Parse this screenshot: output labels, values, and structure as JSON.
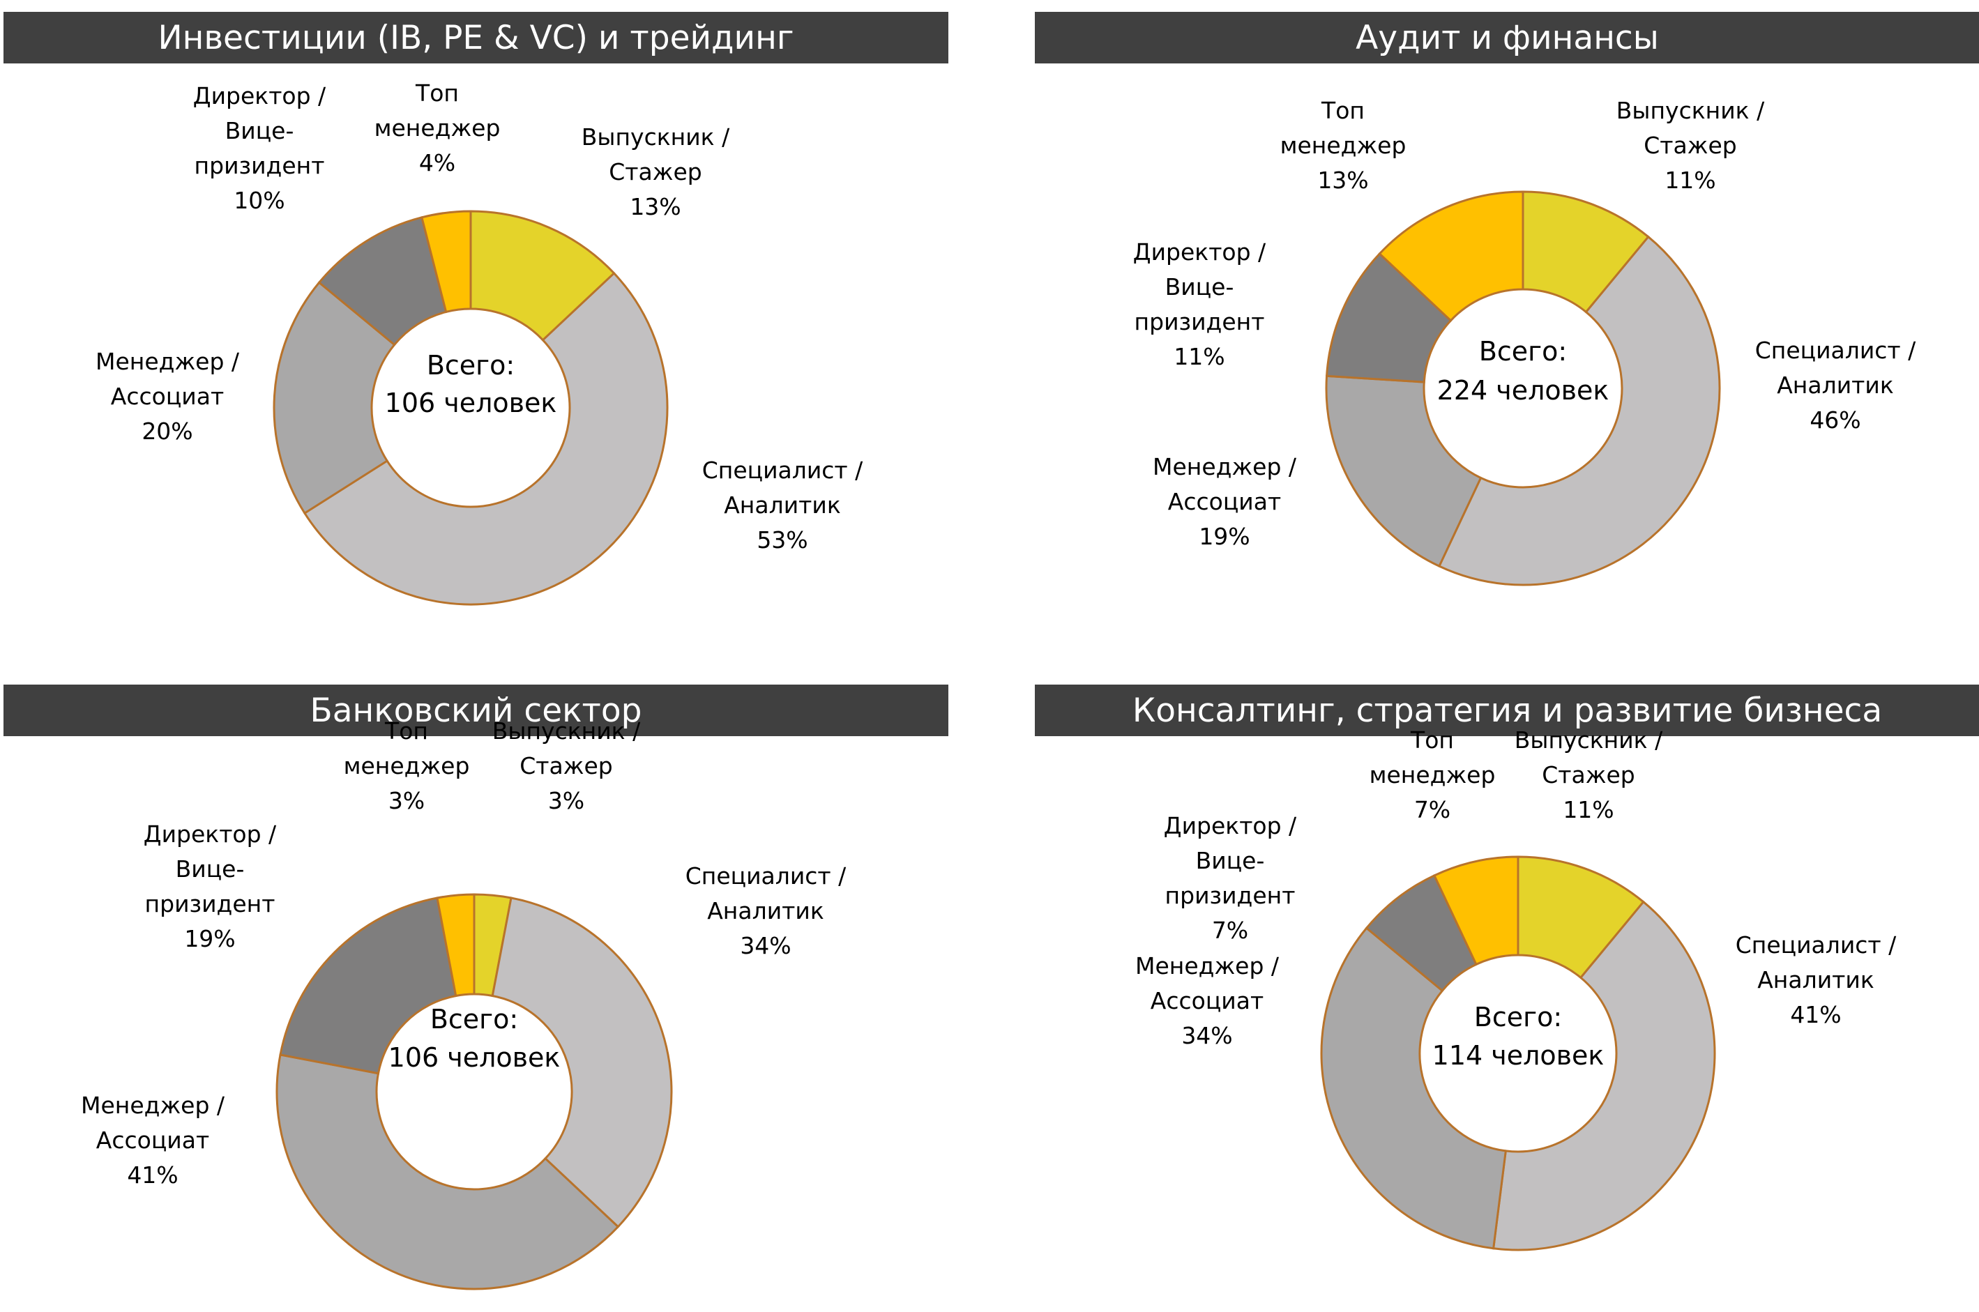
{
  "colors": {
    "title_bar": "#404040",
    "slice_stroke": "#B8732B",
    "Выпускник / Стажер": "#E4D32A",
    "Специалист / Аналитик": "#C2C0C1",
    "Менеджер / Ассоциат": "#A9A8A8",
    "Директор / Вице-призидент": "#7F7E7E",
    "Топ менеджер": "#FFC000"
  },
  "chart_data": [
    {
      "type": "pie",
      "title": "Инвестиции (IB, PE & VC) и трейдинг",
      "total_label": [
        "Всего:",
        "106 человек"
      ],
      "slices": [
        {
          "name": "Выпускник / Стажер",
          "value": 13,
          "label_lines": [
            "Выпускник /",
            "Стажер",
            "13%"
          ]
        },
        {
          "name": "Специалист / Аналитик",
          "value": 53,
          "label_lines": [
            "Специалист /",
            "Аналитик",
            "53%"
          ]
        },
        {
          "name": "Менеджер / Ассоциат",
          "value": 20,
          "label_lines": [
            "Менеджер /",
            "Ассоциат",
            "20%"
          ]
        },
        {
          "name": "Директор / Вице-призидент",
          "value": 10,
          "label_lines": [
            "Директор /",
            "Вице-",
            "призидент",
            "10%"
          ]
        },
        {
          "name": "Топ менеджер",
          "value": 4,
          "label_lines": [
            "Топ",
            "менеджер",
            "4%"
          ]
        }
      ]
    },
    {
      "type": "pie",
      "title": "Аудит и финансы",
      "total_label": [
        "Всего:",
        "224  человек"
      ],
      "slices": [
        {
          "name": "Выпускник / Стажер",
          "value": 11,
          "label_lines": [
            "Выпускник /",
            "Стажер",
            "11%"
          ]
        },
        {
          "name": "Специалист / Аналитик",
          "value": 46,
          "label_lines": [
            "Специалист /",
            "Аналитик",
            "46%"
          ]
        },
        {
          "name": "Менеджер / Ассоциат",
          "value": 19,
          "label_lines": [
            "Менеджер /",
            "Ассоциат",
            "19%"
          ]
        },
        {
          "name": "Директор / Вице-призидент",
          "value": 11,
          "label_lines": [
            "Директор /",
            "Вице-",
            "призидент",
            "11%"
          ]
        },
        {
          "name": "Топ менеджер",
          "value": 13,
          "label_lines": [
            "Топ",
            "менеджер",
            "13%"
          ]
        }
      ]
    },
    {
      "type": "pie",
      "title": "Банковский сектор",
      "total_label": [
        "Всего:",
        "106 человек"
      ],
      "slices": [
        {
          "name": "Выпускник / Стажер",
          "value": 3,
          "label_lines": [
            "Выпускник /",
            "Стажер",
            "3%"
          ]
        },
        {
          "name": "Специалист / Аналитик",
          "value": 34,
          "label_lines": [
            "Специалист /",
            "Аналитик",
            "34%"
          ]
        },
        {
          "name": "Менеджер / Ассоциат",
          "value": 41,
          "label_lines": [
            "Менеджер /",
            "Ассоциат",
            "41%"
          ]
        },
        {
          "name": "Директор / Вице-призидент",
          "value": 19,
          "label_lines": [
            "Директор /",
            "Вице-",
            "призидент",
            "19%"
          ]
        },
        {
          "name": "Топ менеджер",
          "value": 3,
          "label_lines": [
            "Топ",
            "менеджер",
            "3%"
          ]
        }
      ]
    },
    {
      "type": "pie",
      "title": "Консалтинг, стратегия и развитие бизнеса",
      "total_label": [
        "Всего:",
        "114  человек"
      ],
      "slices": [
        {
          "name": "Выпускник / Стажер",
          "value": 11,
          "label_lines": [
            "Выпускник /",
            "Стажер",
            "11%"
          ]
        },
        {
          "name": "Специалист / Аналитик",
          "value": 41,
          "label_lines": [
            "Специалист /",
            "Аналитик",
            "41%"
          ]
        },
        {
          "name": "Менеджер / Ассоциат",
          "value": 34,
          "label_lines": [
            "Менеджер /",
            "Ассоциат",
            "34%"
          ]
        },
        {
          "name": "Директор / Вице-призидент",
          "value": 7,
          "label_lines": [
            "Директор /",
            "Вице-",
            "призидент",
            "7%"
          ]
        },
        {
          "name": "Топ менеджер",
          "value": 7,
          "label_lines": [
            "Топ",
            "менеджер",
            "7%"
          ]
        }
      ]
    }
  ]
}
